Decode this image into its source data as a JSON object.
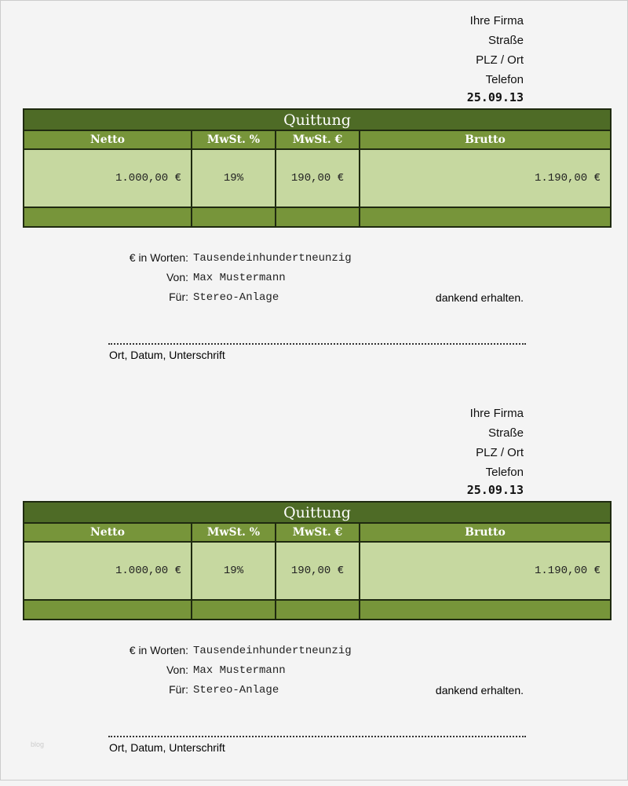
{
  "receipts": [
    {
      "company": {
        "name": "Ihre Firma",
        "street": "Straße",
        "city": "PLZ / Ort",
        "phone": "Telefon",
        "date": "25.09.13"
      },
      "table": {
        "title": "Quittung",
        "headers": [
          "Netto",
          "MwSt. %",
          "MwSt. €",
          "Brutto"
        ],
        "values": [
          "1.000,00 €",
          "19%",
          "190,00 €",
          "1.190,00 €"
        ]
      },
      "words_label": "€ in Worten:",
      "words_value": "Tausendeinhundertneunzig",
      "from_label": "Von:",
      "from_value": "Max Mustermann",
      "for_label": "Für:",
      "for_value": "Stereo-Anlage",
      "thanks": "dankend erhalten.",
      "signature": "Ort, Datum, Unterschrift"
    },
    {
      "company": {
        "name": "Ihre Firma",
        "street": "Straße",
        "city": "PLZ / Ort",
        "phone": "Telefon",
        "date": "25.09.13"
      },
      "table": {
        "title": "Quittung",
        "headers": [
          "Netto",
          "MwSt. %",
          "MwSt. €",
          "Brutto"
        ],
        "values": [
          "1.000,00 €",
          "19%",
          "190,00 €",
          "1.190,00 €"
        ]
      },
      "words_label": "€ in Worten:",
      "words_value": "Tausendeinhundertneunzig",
      "from_label": "Von:",
      "from_value": "Max Mustermann",
      "for_label": "Für:",
      "for_value": "Stereo-Anlage",
      "thanks": "dankend erhalten.",
      "signature": "Ort, Datum, Unterschrift"
    }
  ],
  "watermark": "blog",
  "colors": {
    "title_bg": "#4e6b26",
    "header_bg": "#77953a",
    "value_bg": "#c6d8a0"
  }
}
